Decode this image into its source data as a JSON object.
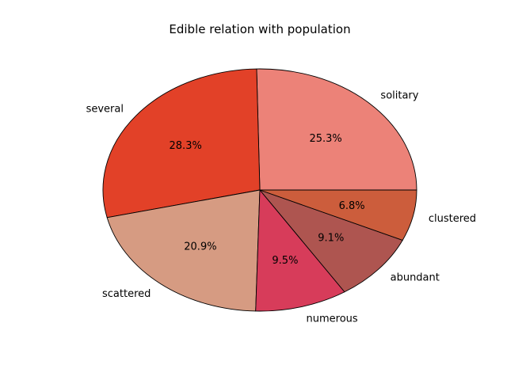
{
  "chart_data": {
    "type": "pie",
    "title": "Edible relation with population",
    "categories": [
      "solitary",
      "several",
      "scattered",
      "numerous",
      "abundant",
      "clustered"
    ],
    "values": [
      25.3,
      28.3,
      20.9,
      9.5,
      9.1,
      6.8
    ],
    "value_labels": [
      "25.3%",
      "28.3%",
      "20.9%",
      "9.5%",
      "9.1%",
      "6.8%"
    ],
    "colors": [
      "#ec8278",
      "#e24128",
      "#d69b82",
      "#d73c5a",
      "#ae5550",
      "#cc5d3c"
    ],
    "start_angle_deg": 0,
    "direction": "counterclockwise",
    "legend": "none"
  }
}
